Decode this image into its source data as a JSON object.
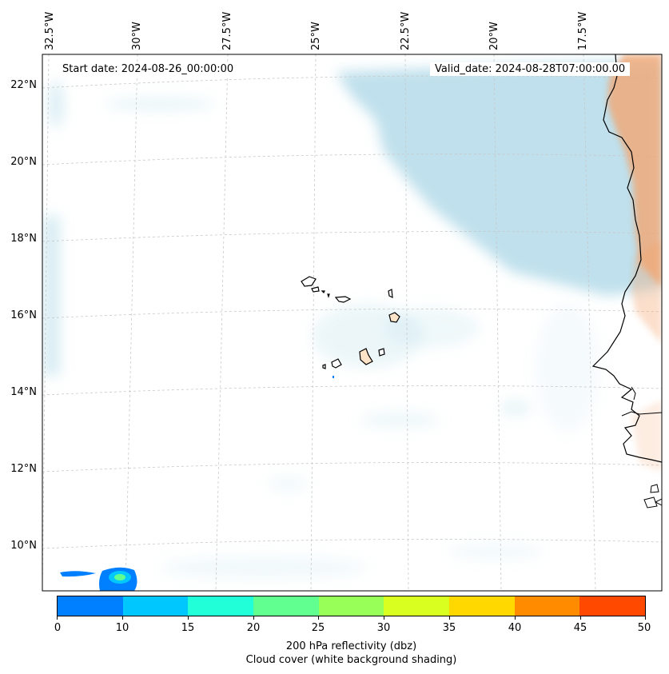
{
  "map": {
    "start_date": "Start date: 2024-08-26_00:00:00",
    "valid_date": "Valid_date: 2024-08-28T07:00:00.00",
    "longitude_labels": [
      "32.5°W",
      "30°W",
      "27.5°W",
      "25°W",
      "22.5°W",
      "20°W",
      "17.5°W"
    ],
    "latitude_labels": [
      "22°N",
      "20°N",
      "18°N",
      "16°N",
      "14°N",
      "12°N",
      "10°N"
    ],
    "colors": {
      "cloud": "#a9d6e5",
      "land_warm": "#f4a36c",
      "coastline": "#000000",
      "gridline": "#c8c8c8"
    }
  },
  "colorbar": {
    "ticks": [
      "0",
      "10",
      "15",
      "20",
      "25",
      "30",
      "35",
      "40",
      "45",
      "50"
    ],
    "colors": [
      "#0080ff",
      "#00c8ff",
      "#20ffd8",
      "#60ff90",
      "#98ff58",
      "#d8ff20",
      "#ffd800",
      "#ff8c00",
      "#ff4800"
    ],
    "label_line1": "200 hPa reflectivity (dbz)",
    "label_line2": "Cloud cover (white background shading)"
  }
}
